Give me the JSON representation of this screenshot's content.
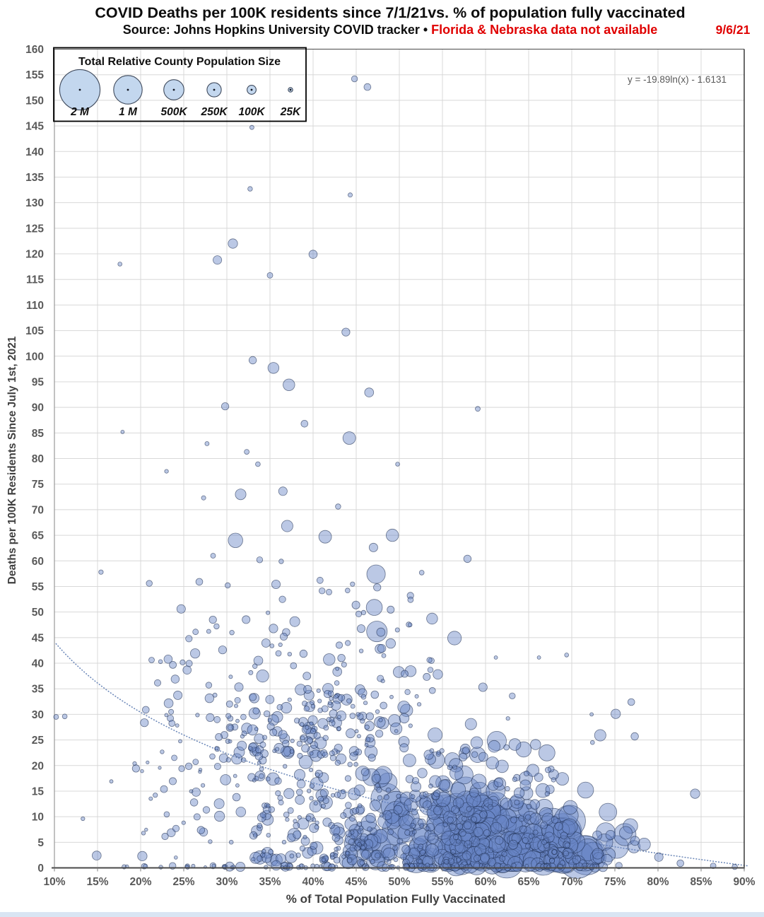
{
  "header": {
    "title": "COVID Deaths per 100K residents since 7/1/21vs. % of population fully vaccinated",
    "subtitle_black": "Source: Johns Hopkins University COVID tracker • ",
    "subtitle_red": "Florida & Nebraska data not available",
    "date": "9/6/21"
  },
  "colors": {
    "red_accent": "#e00000",
    "text_gray": "#595959",
    "grid": "#d8d8d8",
    "frame": "#4a4a4a",
    "bubble_fill": "rgba(104,134,197,0.45)",
    "bubble_stroke": "rgba(30,46,80,0.62)",
    "trend": "#6b87b8",
    "legend_circle_fill": "#c3d7ee",
    "bottom_strip": "#d9e5f3"
  },
  "chart_data": {
    "type": "scatter",
    "title": "COVID Deaths per 100K residents since 7/1/21 vs. % of population fully vaccinated",
    "xlabel": "% of Total Population Fully Vaccinated",
    "ylabel": "Deaths per 100K Residents Since July 1st, 2021",
    "xlim": [
      10,
      90
    ],
    "ylim": [
      0,
      160
    ],
    "x_tick_values": [
      10,
      15,
      20,
      25,
      30,
      35,
      40,
      45,
      50,
      55,
      60,
      65,
      70,
      75,
      80,
      85,
      90
    ],
    "x_tick_labels": [
      "10%",
      "15%",
      "20%",
      "25%",
      "30%",
      "35%",
      "40%",
      "45%",
      "50%",
      "55%",
      "60%",
      "65%",
      "70%",
      "75%",
      "80%",
      "85%",
      "90%"
    ],
    "y_tick_values": [
      0,
      5,
      10,
      15,
      20,
      25,
      30,
      35,
      40,
      45,
      50,
      55,
      60,
      65,
      70,
      75,
      80,
      85,
      90,
      95,
      100,
      105,
      110,
      115,
      120,
      125,
      130,
      135,
      140,
      145,
      150,
      155,
      160
    ],
    "y_tick_labels": [
      "0",
      "5",
      "10",
      "15",
      "20",
      "25",
      "30",
      "35",
      "40",
      "45",
      "50",
      "55",
      "60",
      "65",
      "70",
      "75",
      "80",
      "85",
      "90",
      "95",
      "100",
      "105",
      "110",
      "115",
      "120",
      "125",
      "130",
      "135",
      "140",
      "145",
      "150",
      "155",
      "160"
    ],
    "grid": true,
    "trendline": {
      "label": "y = -19.89ln(x) - 1.6131",
      "a": -19.89,
      "b": -1.6131,
      "x_domain_pct": [
        10.2,
        90.5
      ]
    },
    "size_legend": {
      "title": "Total Relative County Population Size",
      "entries": [
        {
          "label": "2 M",
          "population": 2000000
        },
        {
          "label": "1 M",
          "population": 1000000
        },
        {
          "label": "500K",
          "population": 500000
        },
        {
          "label": "250K",
          "population": 250000
        },
        {
          "label": "100K",
          "population": 100000
        },
        {
          "label": "25K",
          "population": 25000
        }
      ]
    },
    "points_format": [
      "pct_fully_vaccinated",
      "deaths_per_100k_since_jul1",
      "county_population"
    ],
    "points": [
      [
        44.8,
        154.2,
        45000
      ],
      [
        46.3,
        152.6,
        60000
      ],
      [
        32.9,
        144.7,
        22000
      ],
      [
        30.7,
        122.0,
        110000
      ],
      [
        28.9,
        118.8,
        90000
      ],
      [
        40.0,
        119.9,
        85000
      ],
      [
        17.6,
        118.0,
        20000
      ],
      [
        35.0,
        115.8,
        40000
      ],
      [
        32.7,
        132.7,
        26000
      ],
      [
        44.3,
        131.5,
        24000
      ],
      [
        43.8,
        104.7,
        80000
      ],
      [
        33.0,
        99.2,
        70000
      ],
      [
        35.4,
        97.7,
        150000
      ],
      [
        37.2,
        94.4,
        170000
      ],
      [
        46.5,
        92.9,
        100000
      ],
      [
        29.8,
        90.2,
        65000
      ],
      [
        59.1,
        89.7,
        30000
      ],
      [
        39.0,
        86.8,
        60000
      ],
      [
        17.9,
        85.2,
        15000
      ],
      [
        44.2,
        84.0,
        200000
      ],
      [
        27.7,
        82.9,
        22000
      ],
      [
        32.3,
        81.3,
        30000
      ],
      [
        33.6,
        78.9,
        28000
      ],
      [
        49.8,
        78.9,
        20000
      ],
      [
        23.0,
        77.5,
        18000
      ],
      [
        31.6,
        73.0,
        140000
      ],
      [
        27.3,
        72.3,
        24000
      ],
      [
        36.5,
        73.6,
        90000
      ],
      [
        42.9,
        70.6,
        35000
      ],
      [
        37.0,
        66.8,
        160000
      ],
      [
        41.4,
        64.7,
        200000
      ],
      [
        31.0,
        64.0,
        260000
      ],
      [
        47.0,
        62.6,
        90000
      ],
      [
        57.9,
        60.4,
        70000
      ],
      [
        28.4,
        61.0,
        30000
      ],
      [
        33.8,
        60.2,
        45000
      ],
      [
        36.3,
        59.9,
        26000
      ],
      [
        47.3,
        57.4,
        420000
      ],
      [
        15.4,
        57.8,
        25000
      ],
      [
        21.0,
        55.6,
        45000
      ],
      [
        26.8,
        55.9,
        60000
      ],
      [
        30.1,
        55.2,
        35000
      ],
      [
        35.7,
        55.4,
        90000
      ],
      [
        40.8,
        56.2,
        50000
      ],
      [
        44.0,
        54.2,
        28000
      ],
      [
        47.1,
        50.9,
        320000
      ],
      [
        51.3,
        52.4,
        40000
      ],
      [
        24.7,
        50.6,
        90000
      ],
      [
        10.2,
        29.5,
        30000
      ],
      [
        11.2,
        29.6,
        28000
      ],
      [
        13.3,
        9.6,
        18000
      ],
      [
        16.6,
        16.9,
        15000
      ],
      [
        14.9,
        2.4,
        100000
      ],
      [
        20.2,
        2.3,
        110000
      ],
      [
        61.2,
        41.1,
        15000
      ],
      [
        66.2,
        41.1,
        15000
      ],
      [
        62.6,
        29.2,
        18000
      ],
      [
        61.3,
        24.8,
        450000
      ],
      [
        65.8,
        24.1,
        130000
      ],
      [
        75.1,
        30.1,
        110000
      ],
      [
        76.9,
        32.4,
        60000
      ],
      [
        72.3,
        30.0,
        15000
      ],
      [
        72.4,
        24.5,
        20000
      ],
      [
        84.3,
        14.5,
        110000
      ],
      [
        22.3,
        40.3,
        20000
      ],
      [
        25.6,
        44.8,
        55000
      ],
      [
        28.8,
        47.2,
        35000
      ],
      [
        20.6,
        30.9,
        60000
      ],
      [
        23.9,
        21.5,
        40000
      ],
      [
        26.2,
        12.8,
        70000
      ],
      [
        24.1,
        7.7,
        55000
      ],
      [
        21.7,
        14.2,
        25000
      ],
      [
        19.3,
        20.4,
        18000
      ],
      [
        27.9,
        35.7,
        45000
      ],
      [
        29.5,
        42.6,
        80000
      ],
      [
        52.6,
        57.7,
        28000
      ],
      [
        49.2,
        65.0,
        190000
      ],
      [
        53.8,
        48.7,
        150000
      ],
      [
        56.4,
        44.9,
        230000
      ],
      [
        59.7,
        35.3,
        90000
      ],
      [
        63.1,
        33.6,
        45000
      ],
      [
        58.3,
        28.1,
        160000
      ],
      [
        68.9,
        17.4,
        200000
      ],
      [
        71.6,
        15.2,
        320000
      ],
      [
        74.2,
        10.9,
        380000
      ],
      [
        76.8,
        8.2,
        260000
      ],
      [
        78.4,
        4.6,
        190000
      ],
      [
        80.1,
        2.1,
        90000
      ],
      [
        82.6,
        0.9,
        60000
      ],
      [
        86.4,
        0.4,
        40000
      ],
      [
        88.9,
        0.2,
        35000
      ],
      [
        69.4,
        41.6,
        20000
      ],
      [
        73.3,
        25.9,
        160000
      ],
      [
        77.3,
        25.7,
        70000
      ],
      [
        47.4,
        46.2,
        520000
      ]
    ],
    "density_clusters": [
      {
        "x": [
          33,
          46
        ],
        "y": [
          1.5,
          23
        ],
        "n": 140,
        "pop": [
          18000,
          220000
        ],
        "y_bias": 1.5,
        "pop_skew": 2.2,
        "seed": 11
      },
      {
        "x": [
          44,
          58
        ],
        "y": [
          0.8,
          20
        ],
        "n": 170,
        "pop": [
          22000,
          450000
        ],
        "y_bias": 1.5,
        "pop_skew": 2.2,
        "seed": 22
      },
      {
        "x": [
          46,
          62
        ],
        "y": [
          1,
          15
        ],
        "n": 45,
        "pop": [
          400000,
          1300000
        ],
        "y_bias": 1.2,
        "pop_skew": 1.6,
        "seed": 33
      },
      {
        "x": [
          56,
          70
        ],
        "y": [
          0.5,
          13
        ],
        "n": 150,
        "pop": [
          30000,
          650000
        ],
        "y_bias": 1.4,
        "pop_skew": 2.0,
        "seed": 44
      },
      {
        "x": [
          57,
          73
        ],
        "y": [
          1,
          10.5
        ],
        "n": 38,
        "pop": [
          650000,
          2050000
        ],
        "y_bias": 1.1,
        "pop_skew": 1.4,
        "seed": 55
      },
      {
        "x": [
          69,
          77.5
        ],
        "y": [
          0.8,
          7
        ],
        "n": 26,
        "pop": [
          80000,
          800000
        ],
        "y_bias": 1.2,
        "pop_skew": 1.8,
        "seed": 66
      },
      {
        "x": [
          28,
          76
        ],
        "y": [
          0.02,
          0.5
        ],
        "n": 95,
        "pop": [
          12000,
          120000
        ],
        "y_bias": 1.0,
        "pop_skew": 1.8,
        "seed": 77
      },
      {
        "x": [
          13.5,
          30
        ],
        "y": [
          0.02,
          0.4
        ],
        "n": 12,
        "pop": [
          10000,
          60000
        ],
        "y_bias": 1.0,
        "pop_skew": 1.8,
        "seed": 78
      },
      {
        "x": [
          30,
          55
        ],
        "y": [
          21,
          42
        ],
        "n": 115,
        "pop": [
          15000,
          200000
        ],
        "y_bias": 1.2,
        "pop_skew": 2.4,
        "seed": 88
      },
      {
        "x": [
          54,
          68
        ],
        "y": [
          13,
          26
        ],
        "n": 48,
        "pop": [
          25000,
          350000
        ],
        "y_bias": 1.1,
        "pop_skew": 2.0,
        "seed": 99
      },
      {
        "x": [
          34,
          52
        ],
        "y": [
          41,
          56
        ],
        "n": 32,
        "pop": [
          18000,
          140000
        ],
        "y_bias": 1.0,
        "pop_skew": 2.0,
        "seed": 101
      },
      {
        "x": [
          19,
          31
        ],
        "y": [
          2,
          30
        ],
        "n": 38,
        "pop": [
          12000,
          90000
        ],
        "y_bias": 1.0,
        "pop_skew": 1.8,
        "seed": 112
      },
      {
        "x": [
          21,
          34
        ],
        "y": [
          29,
          50
        ],
        "n": 26,
        "pop": [
          14000,
          110000
        ],
        "y_bias": 1.0,
        "pop_skew": 1.8,
        "seed": 123
      },
      {
        "x": [
          28,
          36
        ],
        "y": [
          10,
          30
        ],
        "n": 45,
        "pop": [
          15000,
          150000
        ],
        "y_bias": 1.0,
        "pop_skew": 2.0,
        "seed": 134
      },
      {
        "x": [
          36,
          48
        ],
        "y": [
          22,
          35
        ],
        "n": 55,
        "pop": [
          18000,
          180000
        ],
        "y_bias": 1.0,
        "pop_skew": 2.2,
        "seed": 145
      }
    ]
  }
}
